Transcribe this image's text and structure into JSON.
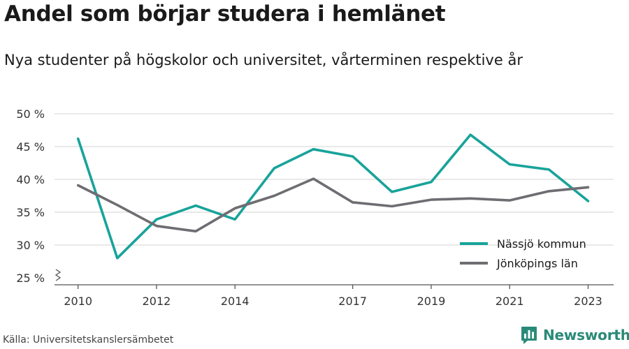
{
  "title": "Andel som börjar studera i hemlänet",
  "subtitle": "Nya studenter på högskolor och universitet, vårterminen respektive år",
  "source": "Källa: Universitetskanslersämbetet",
  "brand": {
    "name": "Newsworthy",
    "icon": "newsworthy-logo-icon",
    "color": "#2a8a78"
  },
  "chart_data": {
    "type": "line",
    "title": "",
    "xlabel": "",
    "ylabel": "",
    "x": [
      2010,
      2011,
      2012,
      2013,
      2014,
      2015,
      2016,
      2017,
      2018,
      2019,
      2020,
      2021,
      2022,
      2023
    ],
    "x_ticks": [
      2010,
      2012,
      2014,
      2017,
      2019,
      2021,
      2023
    ],
    "xlim": [
      2009.4,
      2023.65
    ],
    "y_ticks": [
      25,
      30,
      35,
      40,
      45,
      50
    ],
    "y_tick_labels": [
      "25 %",
      "30 %",
      "35 %",
      "40 %",
      "45 %",
      "50 %"
    ],
    "ylim": [
      25,
      50
    ],
    "y_axis_break": true,
    "grid": true,
    "legend": "bottom-right",
    "series": [
      {
        "name": "Nässjö kommun",
        "color": "#18a39a",
        "values": [
          46.2,
          28.0,
          33.9,
          36.0,
          33.9,
          41.7,
          44.6,
          43.5,
          38.1,
          39.6,
          46.8,
          42.3,
          41.5,
          36.7
        ]
      },
      {
        "name": "Jönköpings län",
        "color": "#6d6d72",
        "values": [
          39.1,
          36.1,
          32.9,
          32.1,
          35.6,
          37.5,
          40.1,
          36.5,
          35.9,
          36.9,
          37.1,
          36.8,
          38.2,
          38.8
        ]
      }
    ]
  }
}
